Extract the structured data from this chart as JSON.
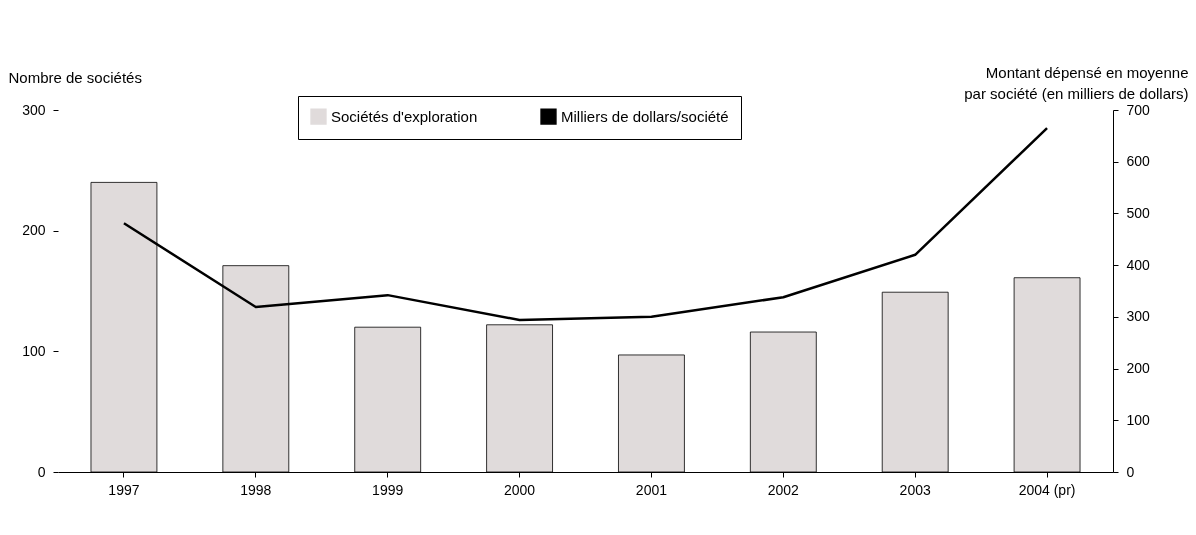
{
  "chart_data": {
    "type": "bar",
    "categories": [
      "1997",
      "1998",
      "1999",
      "2000",
      "2001",
      "2002",
      "2003",
      "2004 (pr)"
    ],
    "ylabel": "Nombre de sociétés",
    "y2label": "Montant dépensé en moyenne\npar société (en milliers de dollars)",
    "ylim": [
      0,
      300
    ],
    "yticks": [
      0,
      100,
      200,
      300
    ],
    "y2lim": [
      0,
      700
    ],
    "y2ticks": [
      0,
      100,
      200,
      300,
      400,
      500,
      600,
      700
    ],
    "series": [
      {
        "name": "Sociétés d'exploration",
        "color": "#e0dbdb",
        "values": [
          240,
          171,
          120,
          122,
          97,
          116,
          149,
          161
        ]
      },
      {
        "name": "Milliers de dollars/société",
        "type": "line",
        "axis": "y2",
        "color": "#000000",
        "values": [
          481,
          319,
          342,
          294,
          300,
          338,
          420,
          665
        ]
      }
    ],
    "grid": false,
    "legend": "top",
    "line_style": "solid",
    "marker": "none"
  }
}
